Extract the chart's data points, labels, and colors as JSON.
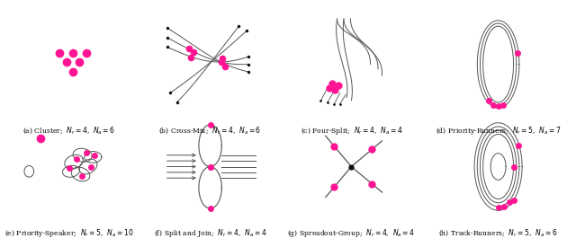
{
  "figsize": [
    6.4,
    2.65
  ],
  "dpi": 100,
  "background": "#ffffff",
  "magenta": "#FF1493",
  "black": "#111111",
  "line_color": "#555555",
  "captions": [
    "(a) Cluster;  $N_r = 4$,  $N_a = 6$",
    "(b) Cross-Mix;  $N_r = 4$,  $N_a = 6$",
    "(c) Four-Split;  $N_r = 4$,  $N_a = 4$",
    "(d) Priority-Runners;  $N_r = 5$,  $N_a = 7$",
    "(e) Priority-Speaker;  $N_r = 5$,  $N_a = 10$",
    "(f) Split and Join;  $N_r = 4$,  $N_a = 4$",
    "(g) Spreadout-Group;  $N_r = 4$,  $N_a = 4$",
    "(h) Track-Runners;  $N_r = 5$,  $N_a = 6$"
  ]
}
